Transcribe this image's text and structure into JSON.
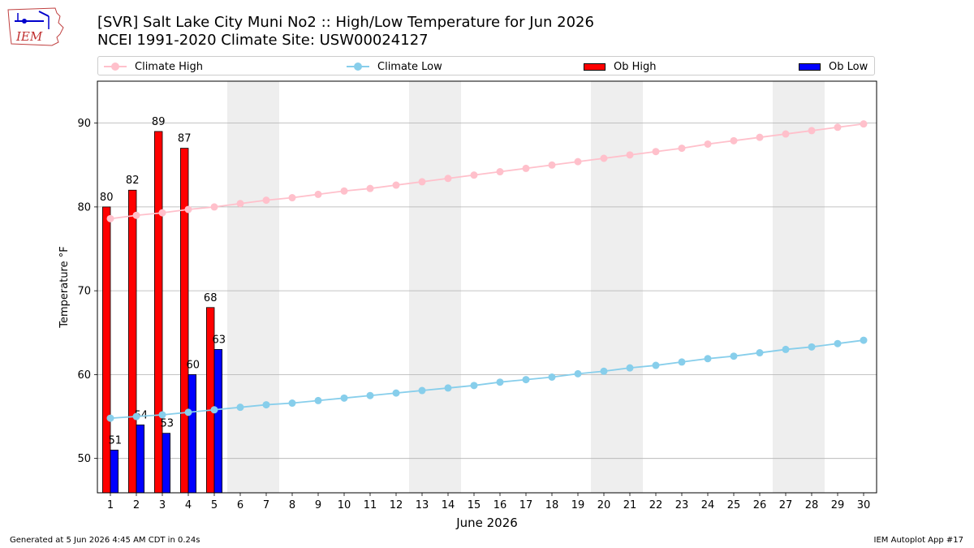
{
  "header": {
    "title_line1": "[SVR] Salt Lake City Muni No2 :: High/Low Temperature for Jun 2026",
    "title_line2": "NCEI 1991-2020 Climate Site: USW00024127",
    "logo_text": "IEM"
  },
  "legend": {
    "climate_high": "Climate High",
    "climate_low": "Climate Low",
    "ob_high": "Ob High",
    "ob_low": "Ob Low"
  },
  "colors": {
    "climate_high": "#ffc0cb",
    "climate_low": "#87ceeb",
    "ob_high": "#ff0000",
    "ob_low": "#0000ff",
    "weekend_shade": "#eeeeee",
    "grid": "#b0b0b0"
  },
  "footer": {
    "left": "Generated at 5 Jun 2026 4:45 AM CDT in 0.24s",
    "right": "IEM Autoplot App #17"
  },
  "chart_data": {
    "type": "bar",
    "xlabel": "June 2026",
    "ylabel": "Temperature °F",
    "ylim": [
      45.9,
      95
    ],
    "yticks": [
      50,
      60,
      70,
      80,
      90
    ],
    "grid": "y",
    "legend_position": "top",
    "x": [
      1,
      2,
      3,
      4,
      5,
      6,
      7,
      8,
      9,
      10,
      11,
      12,
      13,
      14,
      15,
      16,
      17,
      18,
      19,
      20,
      21,
      22,
      23,
      24,
      25,
      26,
      27,
      28,
      29,
      30
    ],
    "weekend_days": [
      6,
      7,
      13,
      14,
      20,
      21,
      27,
      28
    ],
    "series": [
      {
        "name": "Ob High",
        "kind": "bar",
        "x": [
          1,
          2,
          3,
          4,
          5
        ],
        "values": [
          80,
          82,
          89,
          87,
          68
        ]
      },
      {
        "name": "Ob Low",
        "kind": "bar",
        "x": [
          1,
          2,
          3,
          4,
          5
        ],
        "values": [
          51,
          54,
          53,
          60,
          63
        ]
      },
      {
        "name": "Climate High",
        "kind": "line",
        "values": [
          78.6,
          79.0,
          79.3,
          79.7,
          80.0,
          80.4,
          80.8,
          81.1,
          81.5,
          81.9,
          82.2,
          82.6,
          83.0,
          83.4,
          83.8,
          84.2,
          84.6,
          85.0,
          85.4,
          85.8,
          86.2,
          86.6,
          87.0,
          87.5,
          87.9,
          88.3,
          88.7,
          89.1,
          89.5,
          89.9
        ]
      },
      {
        "name": "Climate Low",
        "kind": "line",
        "values": [
          54.8,
          55.0,
          55.2,
          55.5,
          55.8,
          56.1,
          56.4,
          56.6,
          56.9,
          57.2,
          57.5,
          57.8,
          58.1,
          58.4,
          58.7,
          59.1,
          59.4,
          59.7,
          60.1,
          60.4,
          60.8,
          61.1,
          61.5,
          61.9,
          62.2,
          62.6,
          63.0,
          63.3,
          63.7,
          64.1
        ]
      }
    ],
    "bar_labels": {
      "ob_high": [
        "80",
        "82",
        "89",
        "87",
        "68"
      ],
      "ob_low": [
        "51",
        "54",
        "53",
        "60",
        "63"
      ]
    }
  }
}
